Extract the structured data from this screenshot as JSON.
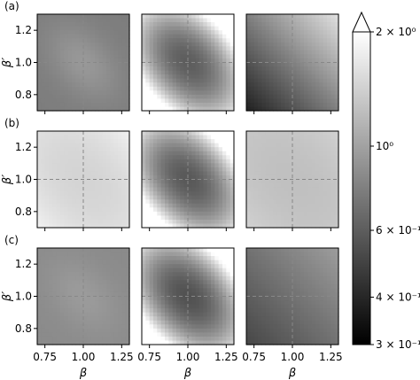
{
  "chart_data": {
    "type": "heatmap",
    "rows": [
      {
        "label": "(a)",
        "panels": [
          {
            "center": 0.93,
            "strength": 0.2,
            "angle": "diag",
            "dir": "down"
          },
          {
            "center": 0.6,
            "strength": -0.55,
            "angle": "diag",
            "dir": "down"
          },
          {
            "center": 0.78,
            "strength": 0.45,
            "angle": "anti",
            "dir": "down"
          }
        ]
      },
      {
        "label": "(b)",
        "panels": [
          {
            "center": 1.45,
            "strength": -0.05,
            "angle": "diag",
            "dir": "down"
          },
          {
            "center": 0.58,
            "strength": -0.55,
            "angle": "diag",
            "dir": "down"
          },
          {
            "center": 1.25,
            "strength": -0.03,
            "angle": "diag",
            "dir": "down"
          }
        ]
      },
      {
        "label": "(c)",
        "panels": [
          {
            "center": 0.95,
            "strength": 0.12,
            "angle": "diag",
            "dir": "down"
          },
          {
            "center": 0.55,
            "strength": -0.55,
            "angle": "diag",
            "dir": "down"
          },
          {
            "center": 0.7,
            "strength": 0.2,
            "angle": "anti",
            "dir": "down"
          }
        ]
      }
    ],
    "x_ticks": [
      "0.75",
      "1.00",
      "1.25"
    ],
    "x_tick_values": [
      0.75,
      1.0,
      1.25
    ],
    "y_ticks": [
      "0.8",
      "1.0",
      "1.2"
    ],
    "y_tick_values": [
      0.8,
      1.0,
      1.2
    ],
    "xlim": [
      0.7,
      1.3
    ],
    "ylim": [
      0.7,
      1.3
    ],
    "xlabel": "β",
    "ylabel": "β′",
    "reference_line": 1.0,
    "colorbar": {
      "scale": "log",
      "min": 0.3,
      "max": 2.0,
      "colormap": "gray",
      "extend": "max",
      "tick_labels": [
        "2 × 10⁰",
        "10⁰",
        "6 × 10⁻¹",
        "4 × 10⁻¹",
        "3 × 10⁻¹"
      ],
      "tick_values": [
        2.0,
        1.0,
        0.6,
        0.4,
        0.3
      ]
    }
  }
}
